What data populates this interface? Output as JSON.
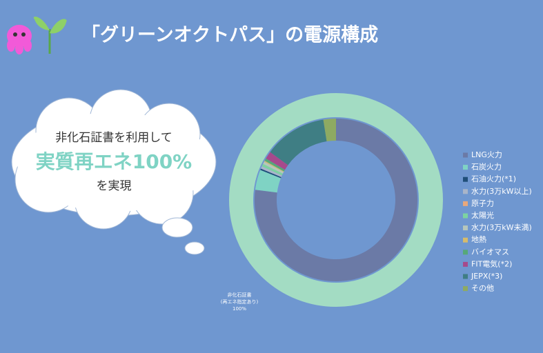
{
  "chart_data": {
    "type": "donut",
    "title": "「グリーンオクトパス」の電源構成",
    "callout": [
      "非化石証書を利用して",
      "実質再エネ100%",
      "を実現"
    ],
    "categories": [
      "LNG火力",
      "石炭火力",
      "石油火力(*1)",
      "水力(3万kW以上)",
      "原子力",
      "太陽光",
      "水力(3万kW未満)",
      "地熱",
      "バイオマス",
      "FIT電気(*2)",
      "JEPX(*3)",
      "その他"
    ],
    "values": [
      77,
      4,
      0.3,
      0.5,
      0,
      0.5,
      0.5,
      0.2,
      0.5,
      1.5,
      12.5,
      2.5
    ],
    "colors": [
      "#6b7aa6",
      "#7fd3c4",
      "#1f4e79",
      "#a9b5c9",
      "#e8a87c",
      "#7dd3a0",
      "#b6c6bc",
      "#d6bc6c",
      "#56a878",
      "#a64a8c",
      "#3f7e84",
      "#8eaa62"
    ],
    "outer_ring": {
      "label_lines": [
        "非化石証書",
        "(再エネ指定あり)"
      ],
      "value": 100,
      "value_label": "100%",
      "color": "#a3dcc3"
    }
  }
}
